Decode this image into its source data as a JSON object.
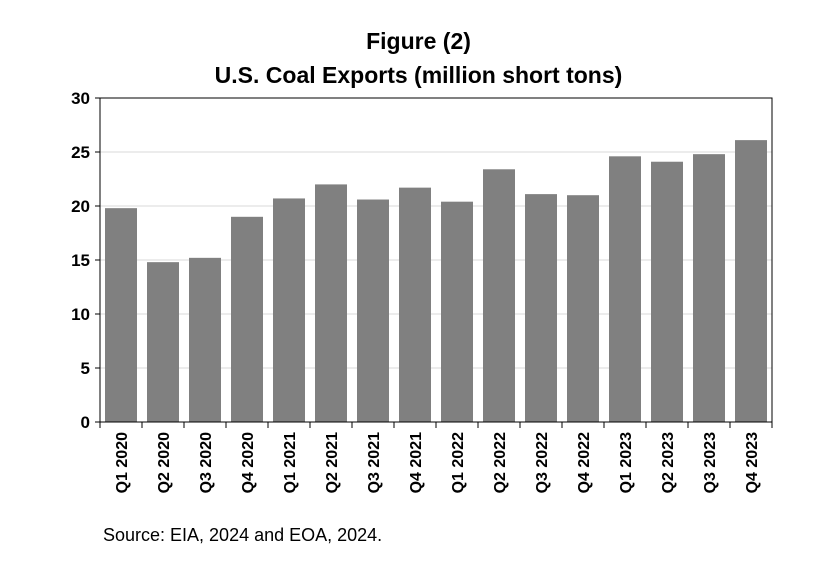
{
  "figure_label": "Figure (2)",
  "source": "Source: EIA, 2024 and EOA, 2024.",
  "chart_data": {
    "type": "bar",
    "title": "U.S. Coal Exports (million short tons)",
    "xlabel": "",
    "ylabel": "",
    "ylim": [
      0,
      30
    ],
    "yticks": [
      0,
      5,
      10,
      15,
      20,
      25,
      30
    ],
    "grid": true,
    "categories": [
      "Q1 2020",
      "Q2 2020",
      "Q3 2020",
      "Q4 2020",
      "Q1 2021",
      "Q2 2021",
      "Q3 2021",
      "Q4 2021",
      "Q1 2022",
      "Q2 2022",
      "Q3 2022",
      "Q4 2022",
      "Q1 2023",
      "Q2 2023",
      "Q3 2023",
      "Q4 2023"
    ],
    "values": [
      19.8,
      14.8,
      15.2,
      19.0,
      20.7,
      22.0,
      20.6,
      21.7,
      20.4,
      23.4,
      21.1,
      21.0,
      24.6,
      24.1,
      24.8,
      26.1
    ],
    "bar_color": "#808080",
    "grid_color": "#d9d9d9"
  }
}
